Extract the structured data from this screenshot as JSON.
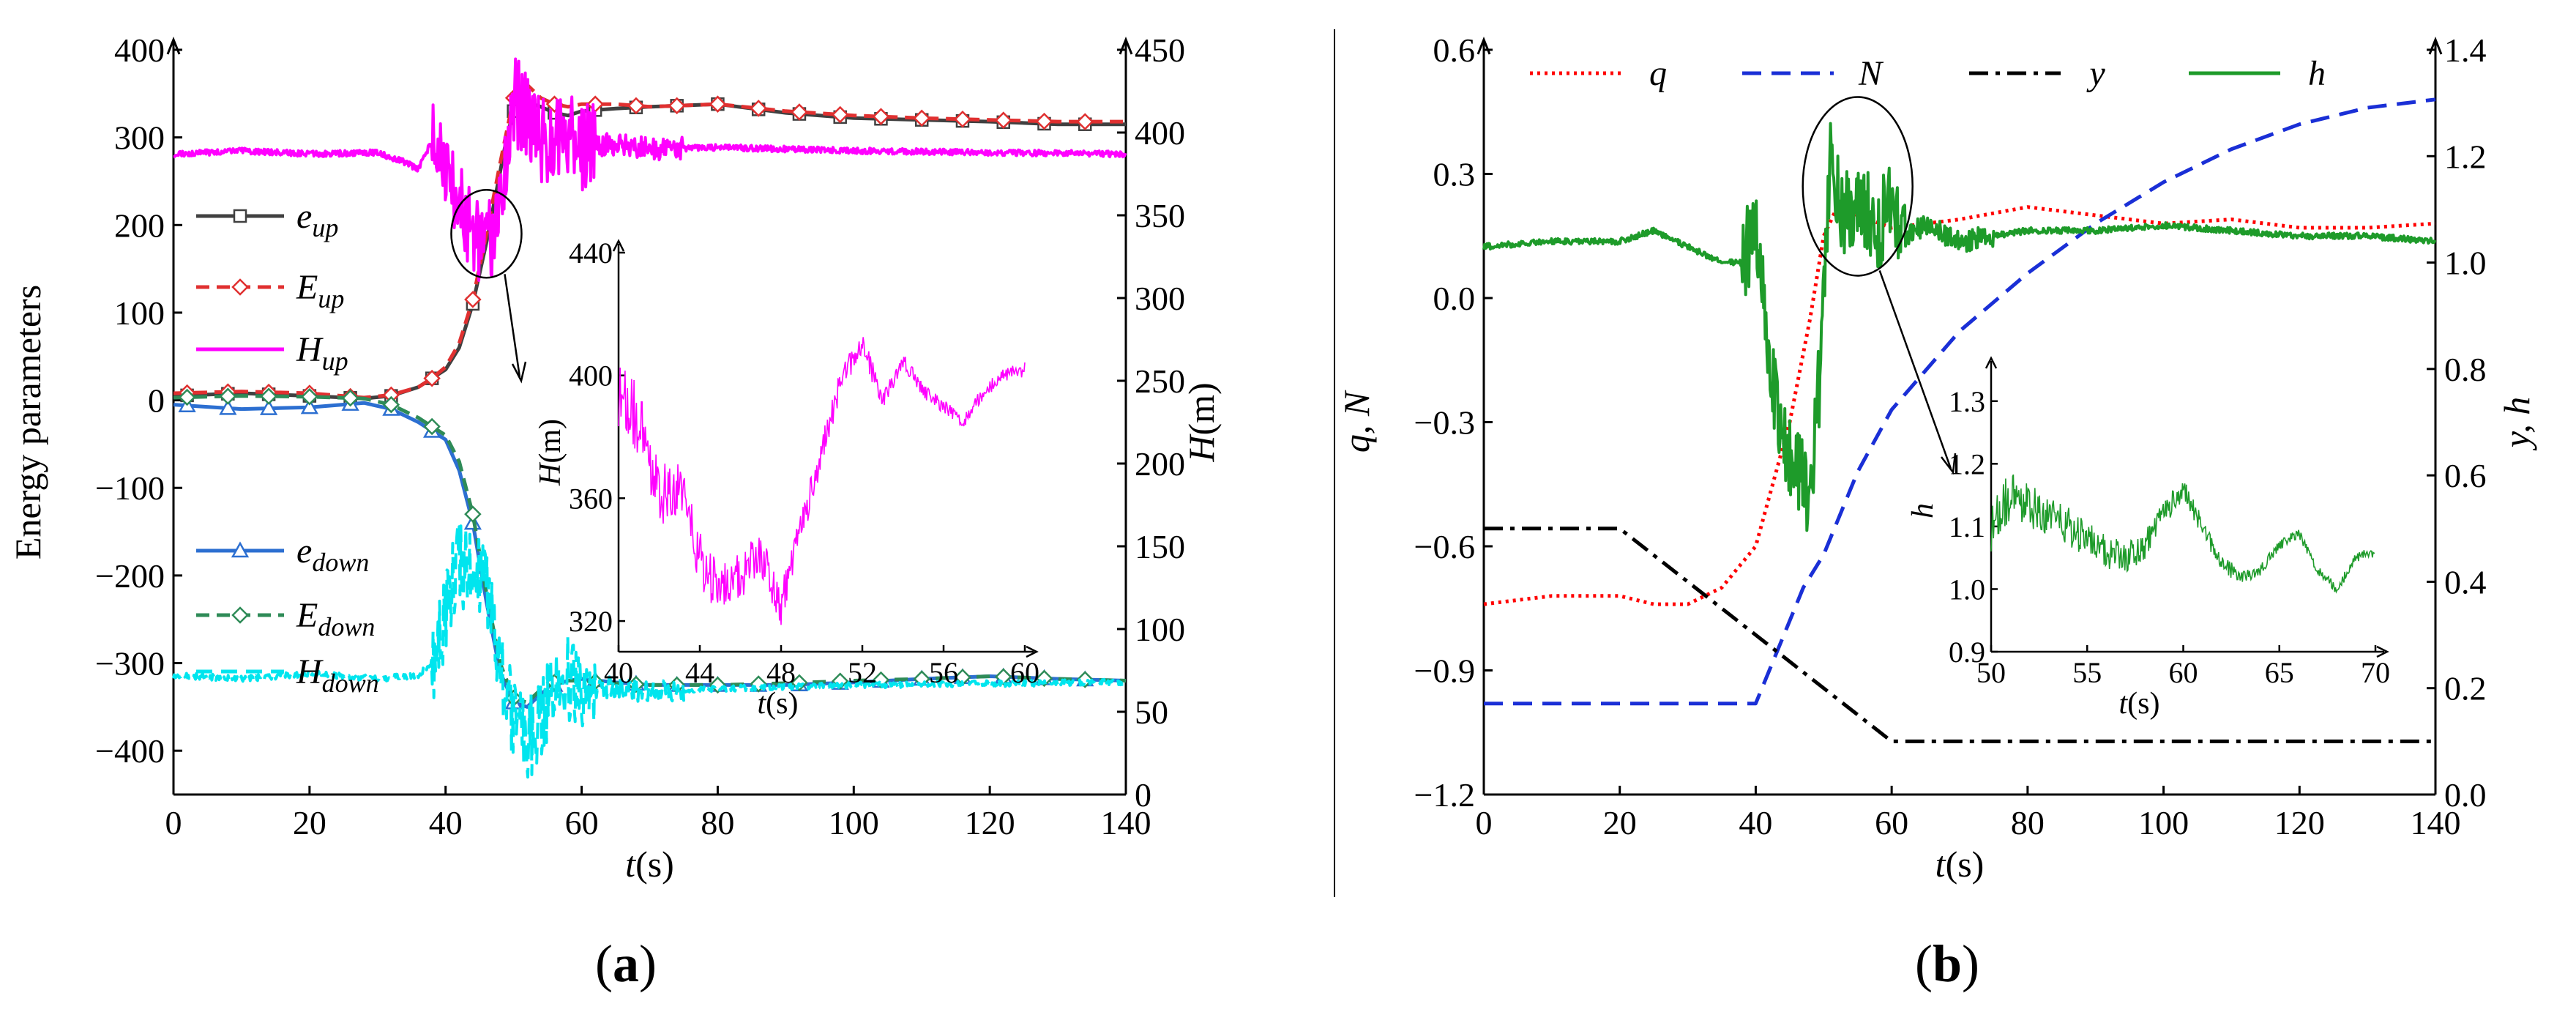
{
  "figure": {
    "panel_a_caption": "(a)",
    "panel_a_caption_letter": "a",
    "panel_b_caption": "(b)",
    "panel_b_caption_letter": "b"
  },
  "chart_data": [
    {
      "id": "a",
      "type": "line",
      "xlabel": "t(s)",
      "ylabel_left": "Energy parameters",
      "ylabel_right": "H(m)",
      "xlim": [
        0,
        140
      ],
      "ylim_left": [
        -450,
        400
      ],
      "ylim_right": [
        0,
        450
      ],
      "xticks": [
        0,
        20,
        40,
        60,
        80,
        100,
        120,
        140
      ],
      "yticks_left": [
        -400,
        -300,
        -200,
        -100,
        0,
        100,
        200,
        300,
        400
      ],
      "yticks_right": [
        0,
        50,
        100,
        150,
        200,
        250,
        300,
        350,
        400,
        450
      ],
      "series": [
        {
          "name": "e_up",
          "base": "e",
          "sub": "up",
          "axis": "left",
          "color": "#404040",
          "dash": "",
          "marker": "square",
          "x": [
            0,
            10,
            20,
            28,
            32,
            36,
            38,
            40,
            42,
            44,
            46,
            48,
            49,
            50,
            51,
            52,
            54,
            56,
            58,
            60,
            65,
            70,
            80,
            90,
            100,
            110,
            120,
            130,
            140
          ],
          "y": [
            5,
            8,
            5,
            2,
            5,
            15,
            25,
            35,
            60,
            110,
            180,
            260,
            300,
            330,
            350,
            340,
            335,
            328,
            325,
            330,
            333,
            335,
            338,
            328,
            322,
            320,
            318,
            315,
            315
          ]
        },
        {
          "name": "E_up",
          "base": "E",
          "sub": "up",
          "axis": "left",
          "color": "#e03030",
          "dash": "18,10",
          "marker": "diamond",
          "x": [
            0,
            10,
            20,
            28,
            32,
            36,
            38,
            40,
            42,
            44,
            46,
            48,
            50,
            52,
            54,
            56,
            58,
            60,
            65,
            70,
            80,
            90,
            100,
            110,
            120,
            130,
            140
          ],
          "y": [
            8,
            10,
            8,
            3,
            6,
            15,
            25,
            38,
            65,
            115,
            190,
            270,
            345,
            360,
            345,
            338,
            335,
            338,
            338,
            335,
            338,
            330,
            325,
            322,
            320,
            318,
            318
          ]
        },
        {
          "name": "H_up",
          "base": "H",
          "sub": "up",
          "axis": "right",
          "color": "#ff00ff",
          "dash": "",
          "marker": "none",
          "noise": true,
          "x": [
            0,
            10,
            20,
            30,
            34,
            36,
            38,
            40,
            42,
            44,
            46,
            48,
            50,
            52,
            54,
            56,
            58,
            60,
            65,
            70,
            80,
            90,
            100,
            120,
            140
          ],
          "y": [
            387,
            389,
            387,
            388,
            382,
            378,
            395,
            375,
            355,
            335,
            325,
            360,
            420,
            410,
            395,
            398,
            400,
            392,
            393,
            390,
            391,
            390,
            389,
            388,
            387
          ]
        },
        {
          "name": "e_down",
          "base": "e",
          "sub": "down",
          "axis": "left",
          "color": "#2c6fd1",
          "dash": "",
          "marker": "triangle",
          "x": [
            0,
            10,
            20,
            28,
            32,
            36,
            38,
            40,
            42,
            44,
            46,
            48,
            50,
            52,
            54,
            56,
            58,
            60,
            65,
            70,
            80,
            90,
            100,
            110,
            120,
            130,
            140
          ],
          "y": [
            -5,
            -10,
            -8,
            -3,
            -10,
            -25,
            -35,
            -45,
            -80,
            -140,
            -230,
            -310,
            -345,
            -350,
            -335,
            -325,
            -320,
            -318,
            -322,
            -325,
            -325,
            -325,
            -322,
            -318,
            -315,
            -318,
            -320
          ]
        },
        {
          "name": "E_down",
          "base": "E",
          "sub": "down",
          "axis": "left",
          "color": "#2e8b57",
          "dash": "18,10",
          "marker": "diamond",
          "x": [
            0,
            10,
            20,
            28,
            32,
            36,
            38,
            40,
            42,
            44,
            46,
            48,
            50,
            52,
            54,
            56,
            58,
            60,
            65,
            70,
            80,
            90,
            100,
            110,
            120,
            130,
            140
          ],
          "y": [
            3,
            5,
            4,
            2,
            -5,
            -20,
            -30,
            -40,
            -70,
            -130,
            -220,
            -300,
            -340,
            -345,
            -330,
            -322,
            -320,
            -320,
            -323,
            -325,
            -325,
            -323,
            -320,
            -318,
            -315,
            -318,
            -320
          ]
        },
        {
          "name": "H_down",
          "base": "H",
          "sub": "down",
          "axis": "right",
          "color": "#00e5ee",
          "dash": "22,12",
          "marker": "none",
          "noise": true,
          "x": [
            0,
            10,
            20,
            30,
            36,
            38,
            40,
            42,
            44,
            46,
            48,
            50,
            52,
            54,
            56,
            58,
            60,
            62,
            65,
            70,
            80,
            90,
            100,
            120,
            140
          ],
          "y": [
            72,
            70,
            73,
            70,
            72,
            80,
            110,
            140,
            135,
            120,
            80,
            40,
            30,
            50,
            60,
            70,
            55,
            65,
            65,
            62,
            64,
            65,
            66,
            67,
            68
          ]
        }
      ],
      "inset": {
        "xlabel": "t(s)",
        "ylabel": "H(m)",
        "xlim": [
          40,
          60
        ],
        "ylim": [
          310,
          440
        ],
        "xticks": [
          40,
          44,
          48,
          52,
          56,
          60
        ],
        "yticks": [
          320,
          360,
          400,
          440
        ],
        "series": [
          {
            "name": "H_up zoom",
            "color": "#ff00ff",
            "noise": true,
            "x": [
              40,
              41,
              42,
              43,
              44,
              45,
              46,
              47,
              48,
              49,
              50,
              51,
              52,
              53,
              54,
              55,
              56,
              57,
              58,
              59,
              60
            ],
            "y": [
              395,
              385,
              360,
              365,
              340,
              330,
              335,
              342,
              325,
              350,
              375,
              400,
              410,
              392,
              405,
              395,
              390,
              385,
              395,
              400,
              402
            ]
          }
        ]
      }
    },
    {
      "id": "b",
      "type": "line",
      "xlabel": "t(s)",
      "ylabel_left": "q, N",
      "ylabel_right": "y, h",
      "xlim": [
        0,
        140
      ],
      "ylim_left": [
        -1.2,
        0.6
      ],
      "ylim_right": [
        0.0,
        1.4
      ],
      "xticks": [
        0,
        20,
        40,
        60,
        80,
        100,
        120,
        140
      ],
      "yticks_left": [
        -1.2,
        -0.9,
        -0.6,
        -0.3,
        0.0,
        0.3,
        0.6
      ],
      "yticks_right": [
        0.0,
        0.2,
        0.4,
        0.6,
        0.8,
        1.0,
        1.2,
        1.4
      ],
      "legend": [
        "q",
        "N",
        "y",
        "h"
      ],
      "series": [
        {
          "name": "q",
          "axis": "left",
          "color": "#ff0000",
          "dash": "4,6",
          "x": [
            0,
            10,
            20,
            25,
            30,
            35,
            40,
            45,
            48,
            50,
            52,
            55,
            60,
            70,
            80,
            90,
            100,
            110,
            120,
            130,
            140
          ],
          "y": [
            -0.74,
            -0.72,
            -0.72,
            -0.74,
            -0.74,
            -0.7,
            -0.6,
            -0.3,
            -0.05,
            0.15,
            0.22,
            0.2,
            0.17,
            0.19,
            0.22,
            0.2,
            0.18,
            0.19,
            0.17,
            0.17,
            0.18
          ]
        },
        {
          "name": "N",
          "axis": "left",
          "color": "#1a2fd6",
          "dash": "26,14",
          "x": [
            0,
            39,
            40,
            42,
            45,
            47,
            50,
            55,
            60,
            70,
            80,
            90,
            100,
            110,
            120,
            130,
            140
          ],
          "y": [
            -0.98,
            -0.98,
            -0.98,
            -0.9,
            -0.78,
            -0.7,
            -0.62,
            -0.42,
            -0.27,
            -0.08,
            0.06,
            0.18,
            0.28,
            0.36,
            0.42,
            0.46,
            0.48
          ]
        },
        {
          "name": "y",
          "axis": "right",
          "color": "#000000",
          "dash": "26,10,6,10",
          "x": [
            0,
            20,
            60,
            140
          ],
          "y": [
            0.5,
            0.5,
            0.1,
            0.1
          ]
        },
        {
          "name": "h",
          "axis": "right",
          "color": "#1e9b2a",
          "dash": "",
          "noise": true,
          "x": [
            0,
            10,
            20,
            25,
            30,
            35,
            38,
            40,
            42,
            44,
            46,
            48,
            50,
            51,
            52,
            54,
            56,
            58,
            60,
            62,
            65,
            70,
            80,
            90,
            100,
            110,
            120,
            130,
            140
          ],
          "y": [
            1.03,
            1.04,
            1.04,
            1.06,
            1.03,
            1.0,
            1.0,
            1.06,
            0.82,
            0.66,
            0.62,
            0.53,
            0.9,
            1.2,
            1.12,
            1.08,
            1.1,
            1.07,
            1.1,
            1.05,
            1.07,
            1.04,
            1.06,
            1.06,
            1.07,
            1.06,
            1.05,
            1.05,
            1.04
          ]
        }
      ],
      "inset": {
        "xlabel": "t(s)",
        "ylabel": "h",
        "xlim": [
          50,
          70
        ],
        "ylim": [
          0.9,
          1.35
        ],
        "xticks": [
          50,
          55,
          60,
          65,
          70
        ],
        "yticks": [
          0.9,
          1.0,
          1.1,
          1.2,
          1.3
        ],
        "series": [
          {
            "name": "h zoom",
            "color": "#1e9b2a",
            "noise": true,
            "x": [
              50,
              51,
              52,
              53,
              54,
              55,
              56,
              57,
              58,
              59,
              60,
              61,
              62,
              63,
              64,
              65,
              66,
              67,
              68,
              69,
              70
            ],
            "y": [
              1.1,
              1.15,
              1.13,
              1.12,
              1.1,
              1.08,
              1.06,
              1.05,
              1.07,
              1.12,
              1.16,
              1.1,
              1.04,
              1.02,
              1.03,
              1.07,
              1.09,
              1.03,
              1.0,
              1.05,
              1.06
            ]
          }
        ]
      }
    }
  ]
}
